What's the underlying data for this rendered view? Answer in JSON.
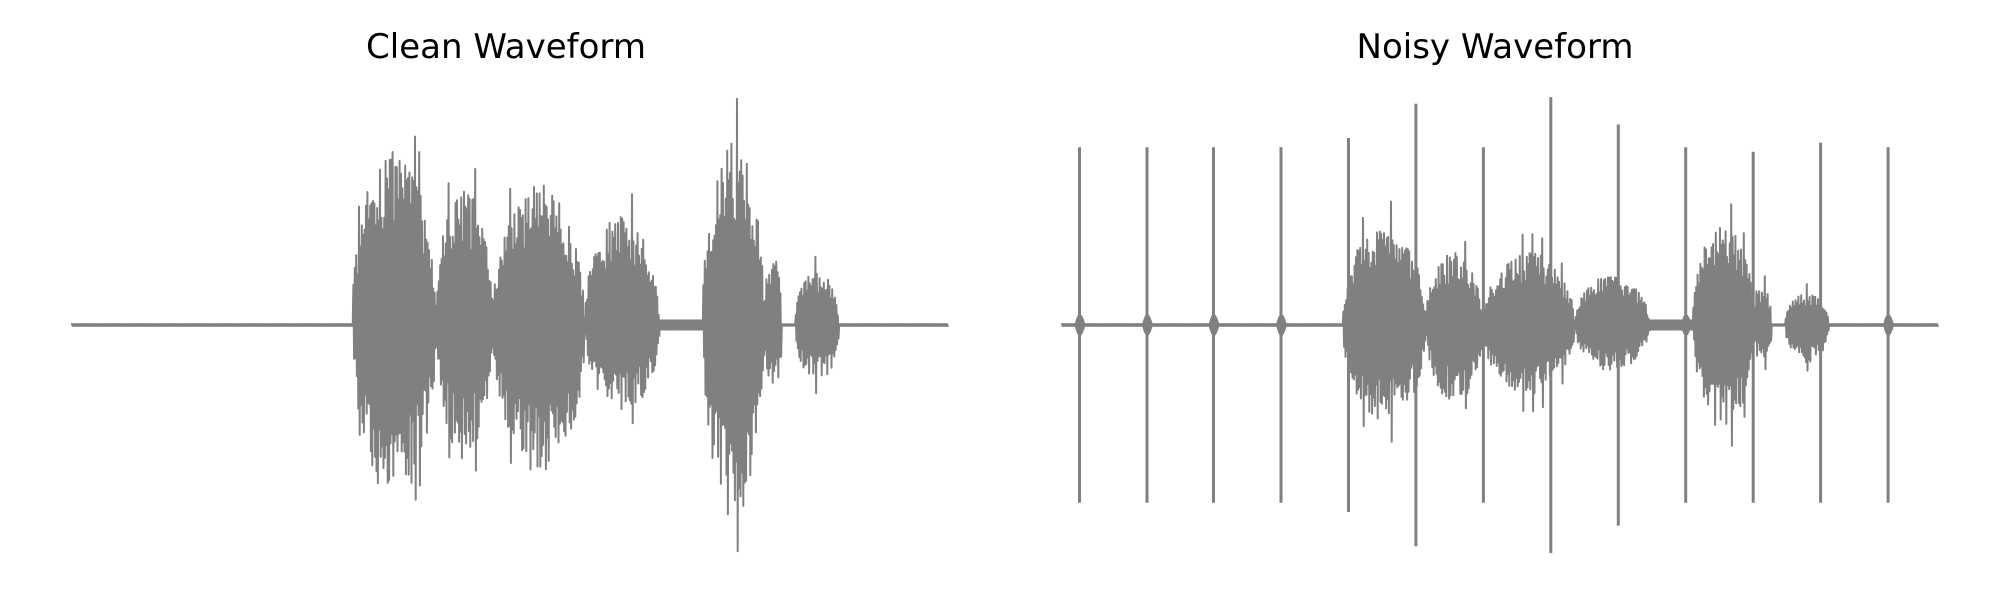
{
  "figure": {
    "line_color": "#808080",
    "background": "#ffffff",
    "axes_visible": false
  },
  "chart_data": [
    {
      "type": "line",
      "title": "Clean Waveform",
      "xlabel": "",
      "ylabel": "",
      "ylim": [
        -1.0,
        1.0
      ],
      "x_range": [
        0,
        1
      ],
      "grid": false,
      "series": [
        {
          "color": "#808080",
          "segments": [
            {
              "type": "silence",
              "x": [
                0.0,
                0.32
              ],
              "level": 0.004
            },
            {
              "type": "speech",
              "x": [
                0.32,
                0.415
              ],
              "peak_pos": 0.97,
              "peak_neg": -0.9,
              "rms": 0.35
            },
            {
              "type": "speech",
              "x": [
                0.415,
                0.48
              ],
              "peak_pos": 0.75,
              "peak_neg": -0.7,
              "rms": 0.3
            },
            {
              "type": "speech",
              "x": [
                0.48,
                0.585
              ],
              "peak_pos": 0.77,
              "peak_neg": -0.78,
              "rms": 0.28
            },
            {
              "type": "speech",
              "x": [
                0.585,
                0.67
              ],
              "peak_pos": 0.6,
              "peak_neg": -0.45,
              "rms": 0.22
            },
            {
              "type": "silence",
              "x": [
                0.67,
                0.72
              ],
              "level": 0.02
            },
            {
              "type": "speech",
              "x": [
                0.72,
                0.79
              ],
              "peak_pos": 1.0,
              "peak_neg": -1.0,
              "rms": 0.4
            },
            {
              "type": "speech",
              "x": [
                0.79,
                0.81
              ],
              "peak_pos": 0.4,
              "peak_neg": -0.35,
              "rms": 0.15
            },
            {
              "type": "speech",
              "x": [
                0.825,
                0.875
              ],
              "peak_pos": 0.3,
              "peak_neg": -0.3,
              "rms": 0.18
            },
            {
              "type": "silence",
              "x": [
                0.875,
                1.0
              ],
              "level": 0.004
            }
          ]
        }
      ]
    },
    {
      "type": "line",
      "title": "Noisy Waveform",
      "xlabel": "",
      "ylabel": "",
      "ylim": [
        -1.0,
        1.0
      ],
      "x_range": [
        0,
        1
      ],
      "grid": false,
      "series": [
        {
          "color": "#808080",
          "segments": [
            {
              "type": "silence",
              "x": [
                0.0,
                0.32
              ],
              "level": 0.004
            },
            {
              "type": "speech",
              "x": [
                0.32,
                0.415
              ],
              "peak_pos": 0.55,
              "peak_neg": -0.52,
              "rms": 0.2
            },
            {
              "type": "speech",
              "x": [
                0.415,
                0.48
              ],
              "peak_pos": 0.4,
              "peak_neg": -0.4,
              "rms": 0.17
            },
            {
              "type": "speech",
              "x": [
                0.48,
                0.585
              ],
              "peak_pos": 0.4,
              "peak_neg": -0.38,
              "rms": 0.15
            },
            {
              "type": "speech",
              "x": [
                0.585,
                0.67
              ],
              "peak_pos": 0.28,
              "peak_neg": -0.25,
              "rms": 0.12
            },
            {
              "type": "silence",
              "x": [
                0.67,
                0.72
              ],
              "level": 0.02
            },
            {
              "type": "speech",
              "x": [
                0.72,
                0.79
              ],
              "peak_pos": 0.55,
              "peak_neg": -0.55,
              "rms": 0.22
            },
            {
              "type": "speech",
              "x": [
                0.79,
                0.81
              ],
              "peak_pos": 0.22,
              "peak_neg": -0.2,
              "rms": 0.1
            },
            {
              "type": "speech",
              "x": [
                0.825,
                0.875
              ],
              "peak_pos": 0.18,
              "peak_neg": -0.2,
              "rms": 0.12
            },
            {
              "type": "silence",
              "x": [
                0.875,
                1.0
              ],
              "level": 0.004
            }
          ],
          "spikes": [
            {
              "x": 0.02,
              "up": 0.78,
              "down": -0.78
            },
            {
              "x": 0.097,
              "up": 0.78,
              "down": -0.78
            },
            {
              "x": 0.173,
              "up": 0.78,
              "down": -0.78
            },
            {
              "x": 0.25,
              "up": 0.78,
              "down": -0.78
            },
            {
              "x": 0.327,
              "up": 0.82,
              "down": -0.82
            },
            {
              "x": 0.404,
              "up": 0.97,
              "down": -0.97
            },
            {
              "x": 0.481,
              "up": 0.78,
              "down": -0.78
            },
            {
              "x": 0.558,
              "up": 1.0,
              "down": -1.0
            },
            {
              "x": 0.635,
              "up": 0.88,
              "down": -0.88
            },
            {
              "x": 0.712,
              "up": 0.78,
              "down": -0.78
            },
            {
              "x": 0.789,
              "up": 0.76,
              "down": -0.78
            },
            {
              "x": 0.866,
              "up": 0.8,
              "down": -0.78
            },
            {
              "x": 0.943,
              "up": 0.78,
              "down": -0.78
            }
          ]
        }
      ]
    }
  ]
}
